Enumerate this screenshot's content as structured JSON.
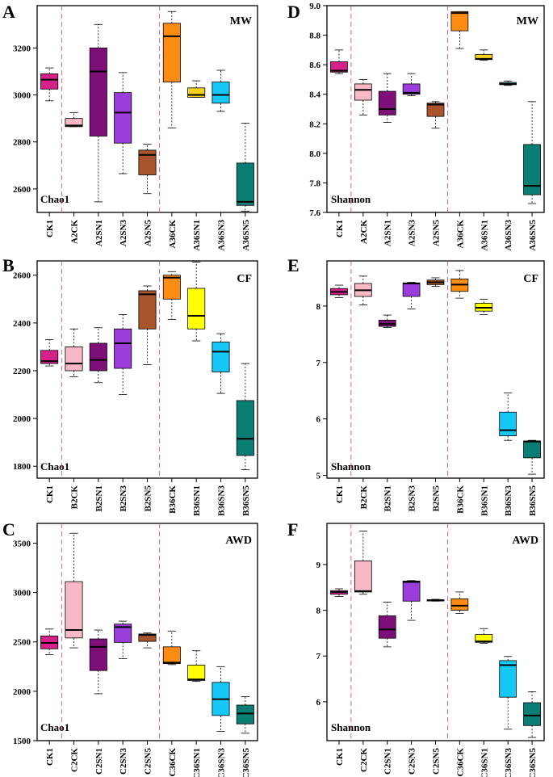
{
  "figure": {
    "colors": {
      "CK1": "#d6218a",
      "CK": "#f9b8c6",
      "SN1": "#7e0f78",
      "SN3": "#9b3ddb",
      "SN5": "#a9542c",
      "S36CK": "#ff8c12",
      "MW_S36SN1": "#f6d21e",
      "CF_S36SN1": "#ffff00",
      "AWD_S36SN1": "#ffff00",
      "S36SN3": "#16c8f5",
      "S36SN5": "#0a7d75",
      "divider": "#e0405a"
    }
  },
  "chart_data": [
    {
      "id": "A",
      "type": "box",
      "panel": "A",
      "tag": "MW",
      "metric": "Chao1",
      "ylim": [
        2500,
        3380
      ],
      "yticks": [
        2600,
        2800,
        3000,
        3200
      ],
      "categories": [
        "CK1",
        "A2CK",
        "A2SN1",
        "A2SN3",
        "A2SN5",
        "A36CK",
        "A36SN1",
        "A36SN3",
        "A36SN5"
      ],
      "color_keys": [
        "CK1",
        "CK",
        "SN1",
        "SN3",
        "SN5",
        "S36CK",
        "MW_S36SN1",
        "S36SN3",
        "S36SN5"
      ],
      "boxes": [
        {
          "min": 2975,
          "q1": 3025,
          "median": 3065,
          "q3": 3090,
          "max": 3115
        },
        {
          "min": 2865,
          "q1": 2865,
          "median": 2870,
          "q3": 2900,
          "max": 2925
        },
        {
          "min": 2545,
          "q1": 2825,
          "median": 3100,
          "q3": 3200,
          "max": 3300
        },
        {
          "min": 2665,
          "q1": 2795,
          "median": 2925,
          "q3": 3010,
          "max": 3095
        },
        {
          "min": 2580,
          "q1": 2660,
          "median": 2745,
          "q3": 2765,
          "max": 2790
        },
        {
          "min": 2860,
          "q1": 3055,
          "median": 3250,
          "q3": 3305,
          "max": 3355
        },
        {
          "min": 2990,
          "q1": 2990,
          "median": 3000,
          "q3": 3030,
          "max": 3060
        },
        {
          "min": 2930,
          "q1": 2965,
          "median": 3000,
          "q3": 3055,
          "max": 3105
        },
        {
          "min": 2505,
          "q1": 2530,
          "median": 2545,
          "q3": 2710,
          "max": 2880
        }
      ]
    },
    {
      "id": "D",
      "type": "box",
      "panel": "D",
      "tag": "MW",
      "metric": "Shannon",
      "ylim": [
        7.6,
        9.0
      ],
      "yticks": [
        7.6,
        7.8,
        8.0,
        8.2,
        8.4,
        8.6,
        8.8,
        9.0
      ],
      "categories": [
        "CK1",
        "A2CK",
        "A2SN1",
        "A2SN3",
        "A2SN5",
        "A36CK",
        "A36SN1",
        "A36SN3",
        "A36SN5"
      ],
      "color_keys": [
        "CK1",
        "CK",
        "SN1",
        "SN3",
        "SN5",
        "S36CK",
        "MW_S36SN1",
        "S36SN3",
        "S36SN5"
      ],
      "boxes": [
        {
          "min": 8.54,
          "q1": 8.55,
          "median": 8.56,
          "q3": 8.62,
          "max": 8.7
        },
        {
          "min": 8.26,
          "q1": 8.36,
          "median": 8.43,
          "q3": 8.47,
          "max": 8.5
        },
        {
          "min": 8.21,
          "q1": 8.26,
          "median": 8.3,
          "q3": 8.42,
          "max": 8.54
        },
        {
          "min": 8.39,
          "q1": 8.4,
          "median": 8.41,
          "q3": 8.47,
          "max": 8.54
        },
        {
          "min": 8.17,
          "q1": 8.25,
          "median": 8.33,
          "q3": 8.34,
          "max": 8.35
        },
        {
          "min": 8.71,
          "q1": 8.83,
          "median": 8.95,
          "q3": 8.96,
          "max": 8.96
        },
        {
          "min": 8.63,
          "q1": 8.635,
          "median": 8.64,
          "q3": 8.67,
          "max": 8.7
        },
        {
          "min": 8.46,
          "q1": 8.465,
          "median": 8.47,
          "q3": 8.48,
          "max": 8.49
        },
        {
          "min": 7.66,
          "q1": 7.72,
          "median": 7.78,
          "q3": 8.06,
          "max": 8.35
        }
      ]
    },
    {
      "id": "B",
      "type": "box",
      "panel": "B",
      "tag": "CF",
      "metric": "Chao1",
      "ylim": [
        1750,
        2660
      ],
      "yticks": [
        1800,
        2000,
        2200,
        2400,
        2600
      ],
      "categories": [
        "CK1",
        "B2CK",
        "B2SN1",
        "B2SN3",
        "B2SN5",
        "B36CK",
        "B36SN1",
        "B36SN3",
        "B36SN5"
      ],
      "color_keys": [
        "CK1",
        "CK",
        "SN1",
        "SN3",
        "SN5",
        "S36CK",
        "CF_S36SN1",
        "S36SN3",
        "S36SN5"
      ],
      "boxes": [
        {
          "min": 2220,
          "q1": 2230,
          "median": 2240,
          "q3": 2285,
          "max": 2330
        },
        {
          "min": 2175,
          "q1": 2200,
          "median": 2230,
          "q3": 2300,
          "max": 2375
        },
        {
          "min": 2150,
          "q1": 2200,
          "median": 2245,
          "q3": 2315,
          "max": 2380
        },
        {
          "min": 2100,
          "q1": 2210,
          "median": 2315,
          "q3": 2375,
          "max": 2435
        },
        {
          "min": 2225,
          "q1": 2375,
          "median": 2520,
          "q3": 2535,
          "max": 2555
        },
        {
          "min": 2415,
          "q1": 2500,
          "median": 2590,
          "q3": 2600,
          "max": 2615
        },
        {
          "min": 2325,
          "q1": 2375,
          "median": 2430,
          "q3": 2545,
          "max": 2655
        },
        {
          "min": 2105,
          "q1": 2195,
          "median": 2280,
          "q3": 2320,
          "max": 2355
        },
        {
          "min": 1785,
          "q1": 1845,
          "median": 1915,
          "q3": 2075,
          "max": 2230
        }
      ]
    },
    {
      "id": "E",
      "type": "box",
      "panel": "E",
      "tag": "CF",
      "metric": "Shannon",
      "ylim": [
        4.95,
        8.8
      ],
      "yticks": [
        5,
        6,
        7,
        8
      ],
      "categories": [
        "CK1",
        "B2CK",
        "B2SN1",
        "B2SN3",
        "B2SN5",
        "B36CK",
        "B36SN1",
        "B36SN3",
        "B36SN5"
      ],
      "color_keys": [
        "CK1",
        "CK",
        "SN1",
        "SN3",
        "SN5",
        "S36CK",
        "CF_S36SN1",
        "S36SN3",
        "S36SN5"
      ],
      "boxes": [
        {
          "min": 8.15,
          "q1": 8.2,
          "median": 8.25,
          "q3": 8.31,
          "max": 8.37
        },
        {
          "min": 8.02,
          "q1": 8.17,
          "median": 8.28,
          "q3": 8.4,
          "max": 8.53
        },
        {
          "min": 7.62,
          "q1": 7.64,
          "median": 7.68,
          "q3": 7.75,
          "max": 7.84
        },
        {
          "min": 7.95,
          "q1": 8.17,
          "median": 8.4,
          "q3": 8.41,
          "max": 8.42
        },
        {
          "min": 8.35,
          "q1": 8.38,
          "median": 8.42,
          "q3": 8.46,
          "max": 8.5
        },
        {
          "min": 8.14,
          "q1": 8.26,
          "median": 8.38,
          "q3": 8.48,
          "max": 8.63
        },
        {
          "min": 7.85,
          "q1": 7.91,
          "median": 7.97,
          "q3": 8.05,
          "max": 8.12
        },
        {
          "min": 5.62,
          "q1": 5.7,
          "median": 5.8,
          "q3": 6.12,
          "max": 6.46
        },
        {
          "min": 5.02,
          "q1": 5.31,
          "median": 5.6,
          "q3": 5.61,
          "max": 5.62
        }
      ]
    },
    {
      "id": "C",
      "type": "box",
      "panel": "C",
      "tag": "AWD",
      "metric": "Chao1",
      "ylim": [
        1500,
        3700
      ],
      "yticks": [
        1500,
        2000,
        2500,
        3000,
        3500
      ],
      "categories": [
        "CK1",
        "C2CK",
        "C2SN1",
        "C2SN3",
        "C2SN5",
        "C36CK",
        "C36SN1",
        "C36SN3",
        "C36SN5"
      ],
      "color_keys": [
        "CK1",
        "CK",
        "SN1",
        "SN3",
        "SN5",
        "S36CK",
        "AWD_S36SN1",
        "S36SN3",
        "S36SN5"
      ],
      "boxes": [
        {
          "min": 2370,
          "q1": 2430,
          "median": 2490,
          "q3": 2560,
          "max": 2630
        },
        {
          "min": 2440,
          "q1": 2540,
          "median": 2620,
          "q3": 3110,
          "max": 3600
        },
        {
          "min": 1975,
          "q1": 2210,
          "median": 2450,
          "q3": 2530,
          "max": 2620
        },
        {
          "min": 2330,
          "q1": 2495,
          "median": 2650,
          "q3": 2680,
          "max": 2710
        },
        {
          "min": 2440,
          "q1": 2505,
          "median": 2570,
          "q3": 2580,
          "max": 2590
        },
        {
          "min": 2270,
          "q1": 2280,
          "median": 2290,
          "q3": 2450,
          "max": 2610
        },
        {
          "min": 2100,
          "q1": 2110,
          "median": 2120,
          "q3": 2265,
          "max": 2410
        },
        {
          "min": 1595,
          "q1": 1755,
          "median": 1920,
          "q3": 2090,
          "max": 2250
        },
        {
          "min": 1575,
          "q1": 1670,
          "median": 1775,
          "q3": 1860,
          "max": 1945
        }
      ]
    },
    {
      "id": "F",
      "type": "box",
      "panel": "F",
      "tag": "AWD",
      "metric": "Shannon",
      "ylim": [
        5.15,
        9.9
      ],
      "yticks": [
        6,
        7,
        8,
        9
      ],
      "categories": [
        "CK1",
        "C2CK",
        "C2SN1",
        "C2SN3",
        "C2SN5",
        "C36CK",
        "C36SN1",
        "C36SN3",
        "C36SN5"
      ],
      "color_keys": [
        "CK1",
        "CK",
        "SN1",
        "SN3",
        "SN5",
        "S36CK",
        "AWD_S36SN1",
        "S36SN3",
        "S36SN5"
      ],
      "boxes": [
        {
          "min": 8.3,
          "q1": 8.35,
          "median": 8.4,
          "q3": 8.43,
          "max": 8.47
        },
        {
          "min": 8.35,
          "q1": 8.4,
          "median": 8.42,
          "q3": 9.08,
          "max": 9.73
        },
        {
          "min": 7.2,
          "q1": 7.39,
          "median": 7.58,
          "q3": 7.88,
          "max": 8.18
        },
        {
          "min": 7.78,
          "q1": 8.2,
          "median": 8.62,
          "q3": 8.64,
          "max": 8.65
        },
        {
          "min": 8.2,
          "q1": 8.21,
          "median": 8.22,
          "q3": 8.23,
          "max": 8.24
        },
        {
          "min": 7.93,
          "q1": 8.0,
          "median": 8.1,
          "q3": 8.25,
          "max": 8.4
        },
        {
          "min": 7.28,
          "q1": 7.3,
          "median": 7.32,
          "q3": 7.47,
          "max": 7.6
        },
        {
          "min": 5.4,
          "q1": 6.1,
          "median": 6.8,
          "q3": 6.9,
          "max": 6.99
        },
        {
          "min": 5.22,
          "q1": 5.48,
          "median": 5.7,
          "q3": 5.98,
          "max": 6.22
        }
      ]
    }
  ]
}
